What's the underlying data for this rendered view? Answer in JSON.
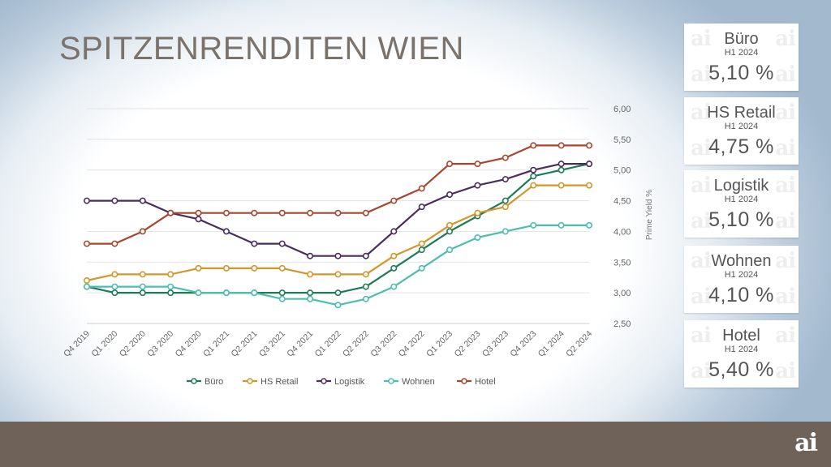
{
  "title": "SPITZENRENDITEN WIEN",
  "logo_text": "ai",
  "cards": [
    {
      "name": "Büro",
      "period": "H1 2024",
      "value": "5,10 %"
    },
    {
      "name": "HS Retail",
      "period": "H1 2024",
      "value": "4,75 %"
    },
    {
      "name": "Logistik",
      "period": "H1 2024",
      "value": "5,10 %"
    },
    {
      "name": "Wohnen",
      "period": "H1 2024",
      "value": "4,10 %"
    },
    {
      "name": "Hotel",
      "period": "H1 2024",
      "value": "5,40 %"
    }
  ],
  "chart_data": {
    "type": "line",
    "title": "",
    "xlabel": "",
    "ylabel": "Prime Yield %",
    "ylim": [
      2.5,
      6.0
    ],
    "yticks": [
      "2,50",
      "3,00",
      "3,50",
      "4,00",
      "4,50",
      "5,00",
      "5,50",
      "6,00"
    ],
    "y_axis_side": "right",
    "grid": "horizontal",
    "legend": "bottom",
    "categories": [
      "Q4 2019",
      "Q1 2020",
      "Q2 2020",
      "Q3 2020",
      "Q4 2020",
      "Q1 2021",
      "Q2 2021",
      "Q3 2021",
      "Q4 2021",
      "Q1 2022",
      "Q2 2022",
      "Q3 2022",
      "Q4 2022",
      "Q1 2023",
      "Q2 2023",
      "Q3 2023",
      "Q4 2023",
      "Q1 2024",
      "Q2 2024"
    ],
    "series": [
      {
        "name": "Büro",
        "color": "#1f7a56",
        "values": [
          3.1,
          3.0,
          3.0,
          3.0,
          3.0,
          3.0,
          3.0,
          3.0,
          3.0,
          3.0,
          3.1,
          3.4,
          3.7,
          4.0,
          4.25,
          4.5,
          4.9,
          5.0,
          5.1
        ]
      },
      {
        "name": "HS Retail",
        "color": "#d4962b",
        "values": [
          3.2,
          3.3,
          3.3,
          3.3,
          3.4,
          3.4,
          3.4,
          3.4,
          3.3,
          3.3,
          3.3,
          3.6,
          3.8,
          4.1,
          4.3,
          4.4,
          4.75,
          4.75,
          4.75
        ]
      },
      {
        "name": "Logistik",
        "color": "#4b2c5e",
        "values": [
          4.5,
          4.5,
          4.5,
          4.3,
          4.2,
          4.0,
          3.8,
          3.8,
          3.6,
          3.6,
          3.6,
          4.0,
          4.4,
          4.6,
          4.75,
          4.85,
          5.0,
          5.1,
          5.1
        ]
      },
      {
        "name": "Wohnen",
        "color": "#4dbdb0",
        "values": [
          3.1,
          3.1,
          3.1,
          3.1,
          3.0,
          3.0,
          3.0,
          2.9,
          2.9,
          2.8,
          2.9,
          3.1,
          3.4,
          3.7,
          3.9,
          4.0,
          4.1,
          4.1,
          4.1
        ]
      },
      {
        "name": "Hotel",
        "color": "#a8452e",
        "values": [
          3.8,
          3.8,
          4.0,
          4.3,
          4.3,
          4.3,
          4.3,
          4.3,
          4.3,
          4.3,
          4.3,
          4.5,
          4.7,
          5.1,
          5.1,
          5.2,
          5.4,
          5.4,
          5.4
        ]
      }
    ]
  }
}
